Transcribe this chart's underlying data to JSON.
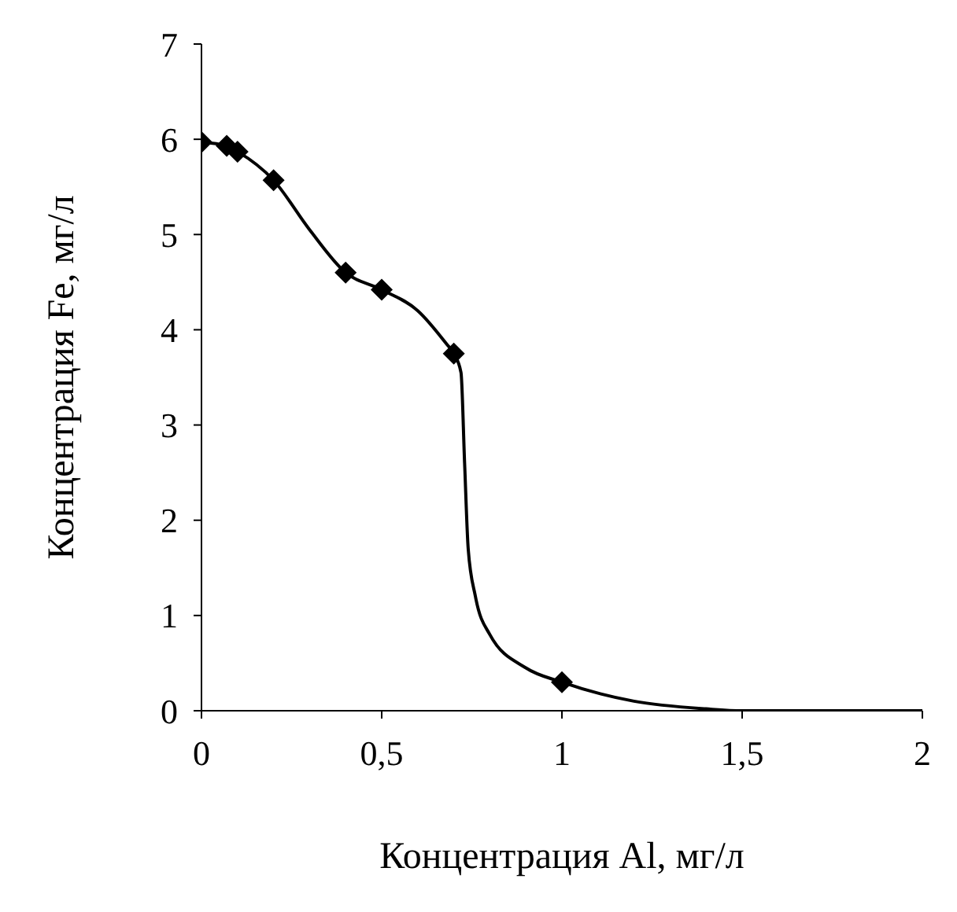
{
  "chart_data": {
    "type": "scatter",
    "xlabel": "Концентрация Al, мг/л",
    "ylabel": "Концентрация Fe, мг/л",
    "xlim": [
      0,
      2
    ],
    "ylim": [
      0,
      7
    ],
    "xticks": [
      0,
      {
        "value": 0.5,
        "label": "0,5"
      },
      1,
      {
        "value": 1.5,
        "label": "1,5"
      },
      2
    ],
    "yticks": [
      0,
      1,
      2,
      3,
      4,
      5,
      6,
      7
    ],
    "grid": false,
    "legend": false,
    "series": [
      {
        "type": "line",
        "color": "#000000",
        "marker": "none",
        "line_style": "solid",
        "x": [
          0,
          0.07,
          0.1,
          0.2,
          0.3,
          0.4,
          0.5,
          0.6,
          0.68,
          0.7,
          0.72,
          0.73,
          0.74,
          0.76,
          0.8,
          0.9,
          1,
          1.2,
          1.4,
          1.5,
          2
        ],
        "values": [
          5.97,
          5.93,
          5.87,
          5.57,
          5.05,
          4.6,
          4.42,
          4.2,
          3.85,
          3.75,
          3.55,
          2.6,
          1.7,
          1.2,
          0.8,
          0.45,
          0.3,
          0.1,
          0.02,
          0,
          0
        ]
      },
      {
        "color": "#000000",
        "marker": "diamond",
        "x": [
          0,
          0.07,
          0.1,
          0.2,
          0.4,
          0.5,
          0.7,
          1
        ],
        "values": [
          5.97,
          5.93,
          5.87,
          5.57,
          4.6,
          4.42,
          3.75,
          0.3
        ]
      }
    ]
  }
}
